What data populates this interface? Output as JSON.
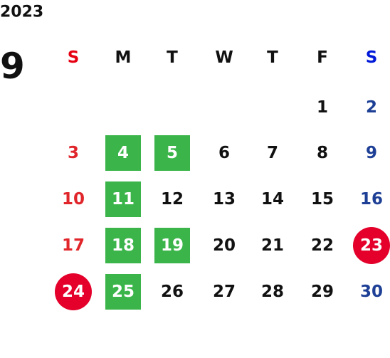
{
  "year": "2023",
  "month": "9",
  "columns": [
    {
      "label": "S",
      "color": "#e60012",
      "day_color": "#e0262b"
    },
    {
      "label": "M",
      "color": "#111111",
      "day_color": "#111111"
    },
    {
      "label": "T",
      "color": "#111111",
      "day_color": "#111111"
    },
    {
      "label": "W",
      "color": "#111111",
      "day_color": "#111111"
    },
    {
      "label": "T",
      "color": "#111111",
      "day_color": "#111111"
    },
    {
      "label": "F",
      "color": "#111111",
      "day_color": "#111111"
    },
    {
      "label": "S",
      "color": "#0018d8",
      "day_color": "#1d3f95"
    }
  ],
  "mark_colors": {
    "green": "#3bb54a",
    "red": "#e4002b"
  },
  "weeks": [
    [
      null,
      null,
      null,
      null,
      null,
      {
        "day": 1
      },
      {
        "day": 2
      }
    ],
    [
      {
        "day": 3
      },
      {
        "day": 4,
        "mark": "green"
      },
      {
        "day": 5,
        "mark": "green"
      },
      {
        "day": 6
      },
      {
        "day": 7
      },
      {
        "day": 8
      },
      {
        "day": 9
      }
    ],
    [
      {
        "day": 10
      },
      {
        "day": 11,
        "mark": "green"
      },
      {
        "day": 12
      },
      {
        "day": 13
      },
      {
        "day": 14
      },
      {
        "day": 15
      },
      {
        "day": 16
      }
    ],
    [
      {
        "day": 17
      },
      {
        "day": 18,
        "mark": "green"
      },
      {
        "day": 19,
        "mark": "green"
      },
      {
        "day": 20
      },
      {
        "day": 21
      },
      {
        "day": 22
      },
      {
        "day": 23,
        "mark": "red"
      }
    ],
    [
      {
        "day": 24,
        "mark": "red"
      },
      {
        "day": 25,
        "mark": "green"
      },
      {
        "day": 26
      },
      {
        "day": 27
      },
      {
        "day": 28
      },
      {
        "day": 29
      },
      {
        "day": 30
      }
    ]
  ]
}
